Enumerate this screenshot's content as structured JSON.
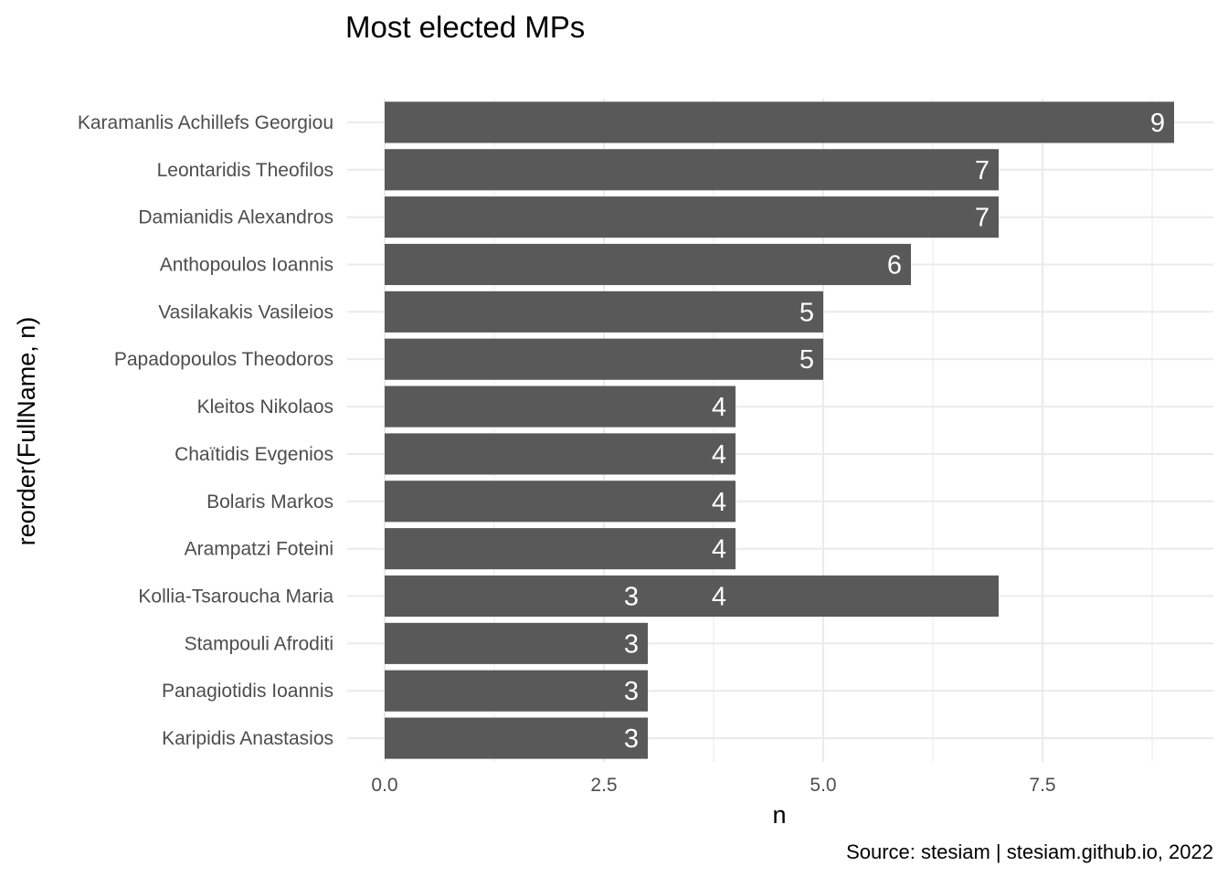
{
  "chart_data": {
    "type": "bar",
    "orientation": "horizontal",
    "title": "Most elected MPs",
    "caption": "Source: stesiam | stesiam.github.io, 2022",
    "xlabel": "n",
    "ylabel": "reorder(FullName, n)",
    "xlim": [
      0,
      9
    ],
    "x_ticks": [
      0,
      2.5,
      5,
      7.5
    ],
    "x_tick_labels": [
      "0.0",
      "2.5",
      "5.0",
      "7.5"
    ],
    "grid": true,
    "bar_color": "#595959",
    "label_color": "#ffffff",
    "categories": [
      "Karamanlis Achillefs Georgiou",
      "Leontaridis Theofilos",
      "Damianidis Alexandros",
      "Anthopoulos Ioannis",
      "Vasilakakis Vasileios",
      "Papadopoulos Theodoros",
      "Kleitos Nikolaos",
      "Chaïtidis Evgenios",
      "Bolaris Markos",
      "Arampatzi Foteini",
      "Kollia-Tsaroucha Maria",
      "Stampouli Afroditi",
      "Panagiotidis Ioannis",
      "Karipidis Anastasios"
    ],
    "values": [
      9,
      7,
      7,
      6,
      5,
      5,
      4,
      4,
      4,
      4,
      7,
      3,
      3,
      3
    ],
    "data_labels": [
      [
        "9"
      ],
      [
        "7"
      ],
      [
        "7"
      ],
      [
        "6"
      ],
      [
        "5"
      ],
      [
        "5"
      ],
      [
        "4"
      ],
      [
        "4"
      ],
      [
        "4"
      ],
      [
        "4"
      ],
      [
        "3",
        "4"
      ],
      [
        "3"
      ],
      [
        "3"
      ],
      [
        "3"
      ]
    ],
    "data_label_positions": [
      [
        9
      ],
      [
        7
      ],
      [
        7
      ],
      [
        6
      ],
      [
        5
      ],
      [
        5
      ],
      [
        4
      ],
      [
        4
      ],
      [
        4
      ],
      [
        4
      ],
      [
        3,
        4
      ],
      [
        3
      ],
      [
        3
      ],
      [
        3
      ]
    ]
  }
}
